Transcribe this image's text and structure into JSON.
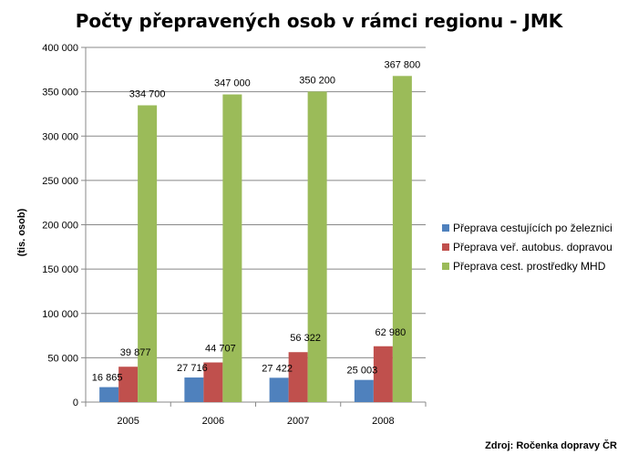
{
  "chart_data": {
    "type": "bar",
    "title": "Počty přepravených osob v rámci regionu - JMK",
    "ylabel": "(tis. osob)",
    "xlabel": "",
    "categories": [
      "2005",
      "2006",
      "2007",
      "2008"
    ],
    "ylim": [
      0,
      400000
    ],
    "yticks": [
      0,
      50000,
      100000,
      150000,
      200000,
      250000,
      300000,
      350000,
      400000
    ],
    "ytick_labels": [
      "0",
      "50 000",
      "100 000",
      "150 000",
      "200 000",
      "250 000",
      "300 000",
      "350 000",
      "400 000"
    ],
    "grid": true,
    "legend_position": "right",
    "series": [
      {
        "name": "Přeprava cestujících po železnici",
        "color": "#4f81bd",
        "values": [
          16865,
          27716,
          27422,
          25003
        ],
        "labels": [
          "16 865",
          "27 716",
          "27 422",
          "25 003"
        ]
      },
      {
        "name": "Přeprava veř. autobus. dopravou",
        "color": "#c0504d",
        "values": [
          39877,
          44707,
          56322,
          62980
        ],
        "labels": [
          "39 877",
          "44 707",
          "56 322",
          "62 980"
        ]
      },
      {
        "name": "Přeprava cest. prostředky MHD",
        "color": "#9bbb59",
        "values": [
          334700,
          347000,
          350200,
          367800
        ],
        "labels": [
          "334 700",
          "347 000",
          "350 200",
          "367 800"
        ]
      }
    ],
    "source": "Zdroj: Ročenka dopravy ČR"
  }
}
